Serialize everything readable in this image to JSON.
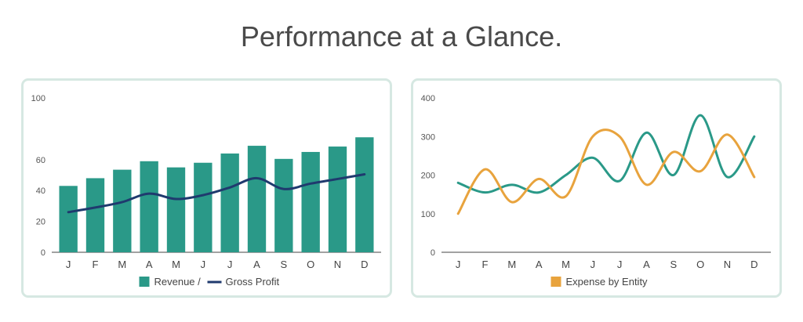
{
  "title": "Performance at a Glance.",
  "charts": {
    "left": {
      "type": "bar",
      "categories": [
        "J",
        "F",
        "M",
        "A",
        "M",
        "J",
        "J",
        "A",
        "S",
        "O",
        "N",
        "D"
      ],
      "yticks": [
        0,
        20,
        40,
        60,
        100
      ],
      "ylim": [
        0,
        100
      ],
      "series": [
        {
          "name": "Revenue /",
          "type": "bar",
          "color": "#2a9988",
          "values": [
            43,
            48,
            53.5,
            59,
            55,
            58,
            64,
            69,
            60.5,
            65,
            68.5,
            74.5
          ]
        },
        {
          "name": "Gross Profit",
          "type": "line",
          "color": "#1f3a6e",
          "values": [
            26,
            29,
            32.5,
            38,
            34.5,
            37,
            42,
            48,
            41,
            44.5,
            47.5,
            50.5
          ]
        }
      ],
      "legend": "bottom"
    },
    "right": {
      "type": "line",
      "categories": [
        "J",
        "F",
        "M",
        "A",
        "M",
        "J",
        "J",
        "A",
        "S",
        "O",
        "N",
        "D"
      ],
      "yticks": [
        0,
        100,
        200,
        300,
        400
      ],
      "ylim": [
        0,
        400
      ],
      "series": [
        {
          "name": "",
          "type": "line",
          "color": "#2a9988",
          "values": [
            180,
            155,
            175,
            155,
            200,
            245,
            185,
            310,
            200,
            355,
            195,
            300
          ]
        },
        {
          "name": "Expense by Entity",
          "type": "line",
          "color": "#e8a33d",
          "values": [
            100,
            215,
            130,
            190,
            145,
            300,
            300,
            175,
            260,
            210,
            305,
            195
          ]
        }
      ],
      "legend": "bottom"
    }
  }
}
